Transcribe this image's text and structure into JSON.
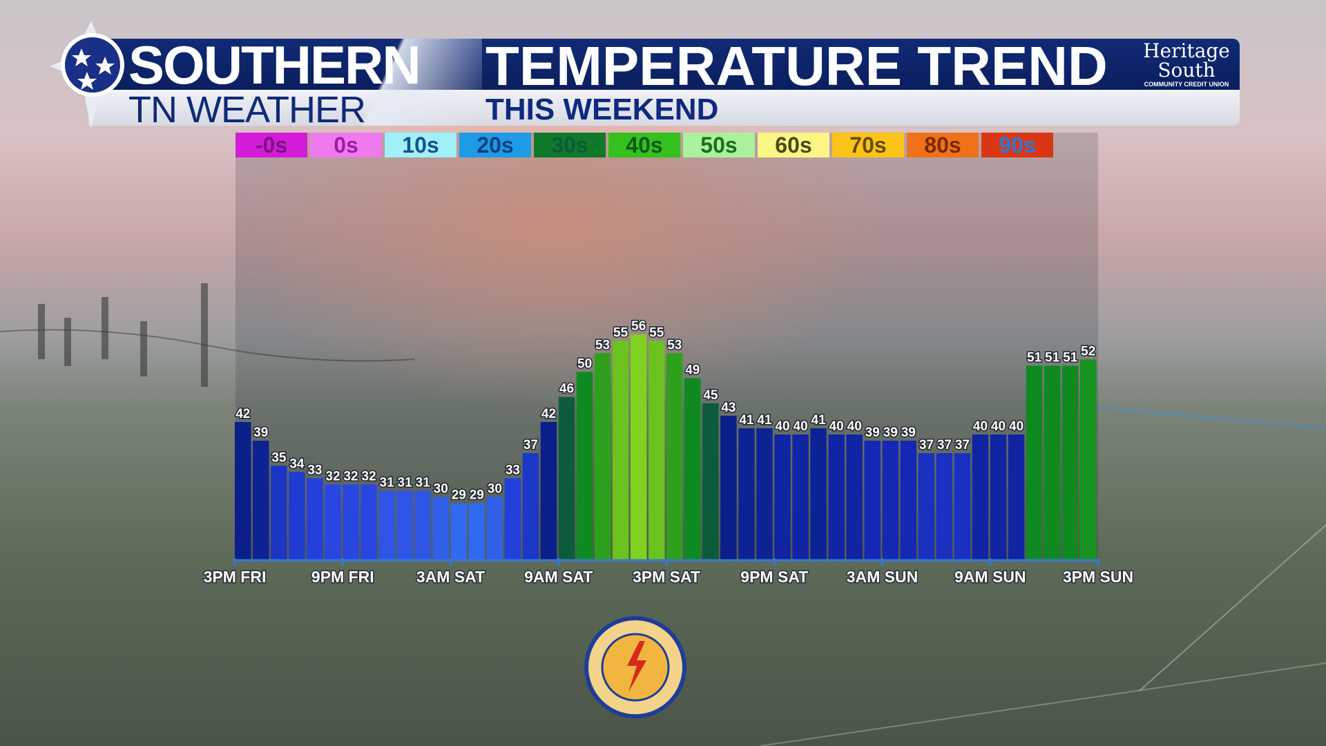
{
  "header": {
    "brand_top": "SOUTHERN",
    "brand_bottom": "TN WEATHER",
    "title": "TEMPERATURE TREND",
    "subtitle": "THIS WEEKEND",
    "sponsor_line1": "Heritage",
    "sponsor_line2": "South",
    "sponsor_line3": "COMMUNITY CREDIT UNION"
  },
  "legend": [
    {
      "label": "-0s",
      "bg": "#d41bd8",
      "fg": "#7a137e"
    },
    {
      "label": "0s",
      "bg": "#ef7aee",
      "fg": "#a21aa8"
    },
    {
      "label": "10s",
      "bg": "#9ff0f8",
      "fg": "#1b4f8c"
    },
    {
      "label": "20s",
      "bg": "#1d9be6",
      "fg": "#0c3f7e"
    },
    {
      "label": "30s",
      "bg": "#0f7a2a",
      "fg": "#0b5a3e"
    },
    {
      "label": "40s",
      "bg": "#34c01d",
      "fg": "#0d5a1a"
    },
    {
      "label": "50s",
      "bg": "#a9f19d",
      "fg": "#206b20"
    },
    {
      "label": "60s",
      "bg": "#fbf586",
      "fg": "#4a4a10"
    },
    {
      "label": "70s",
      "bg": "#f9c318",
      "fg": "#6a4a00"
    },
    {
      "label": "80s",
      "bg": "#f0711b",
      "fg": "#7a2a00"
    },
    {
      "label": "90s",
      "bg": "#d93614",
      "fg": "#2a7ad8"
    }
  ],
  "chart_data": {
    "type": "bar",
    "title": "TEMPERATURE TREND",
    "subtitle": "THIS WEEKEND",
    "x_tick_labels": [
      "3PM FRI",
      "9PM FRI",
      "3AM SAT",
      "9AM SAT",
      "3PM SAT",
      "9PM SAT",
      "3AM SUN",
      "9AM SUN",
      "3PM SUN"
    ],
    "hours_per_bar": 1,
    "bars_per_tick": 6,
    "values": [
      42,
      39,
      35,
      34,
      33,
      32,
      32,
      32,
      31,
      31,
      31,
      30,
      29,
      29,
      30,
      33,
      37,
      42,
      46,
      50,
      53,
      55,
      56,
      55,
      53,
      49,
      45,
      43,
      41,
      41,
      40,
      40,
      41,
      40,
      40,
      39,
      39,
      39,
      37,
      37,
      37,
      40,
      40,
      40,
      51,
      51,
      51,
      52
    ],
    "bar_colors": [
      "#0a1f8a",
      "#0d2394",
      "#1c35c4",
      "#1f3bd0",
      "#2440dc",
      "#2946e2",
      "#2946e2",
      "#2946e2",
      "#2e55e6",
      "#2e55e6",
      "#2e55e6",
      "#3060ea",
      "#2f6af0",
      "#2f6af0",
      "#3060ea",
      "#2440dc",
      "#1c38c8",
      "#0a1f8a",
      "#0c5c3c",
      "#0e8a20",
      "#2fa01c",
      "#6bc21e",
      "#7fd21f",
      "#6bc21e",
      "#2fa01c",
      "#0e8a20",
      "#0c5c3c",
      "#0a1f8a",
      "#0d2394",
      "#0d2394",
      "#1024a4",
      "#1024a4",
      "#0d2394",
      "#1024a4",
      "#1024a4",
      "#1428b4",
      "#1428b4",
      "#1428b4",
      "#1a30c0",
      "#1a30c0",
      "#1a30c0",
      "#1024a4",
      "#1024a4",
      "#1024a4",
      "#0e8a20",
      "#0e8a20",
      "#0e8a20",
      "#16921e"
    ],
    "ylim": [
      20,
      60
    ],
    "grid": false,
    "legend_position": "top-left"
  }
}
